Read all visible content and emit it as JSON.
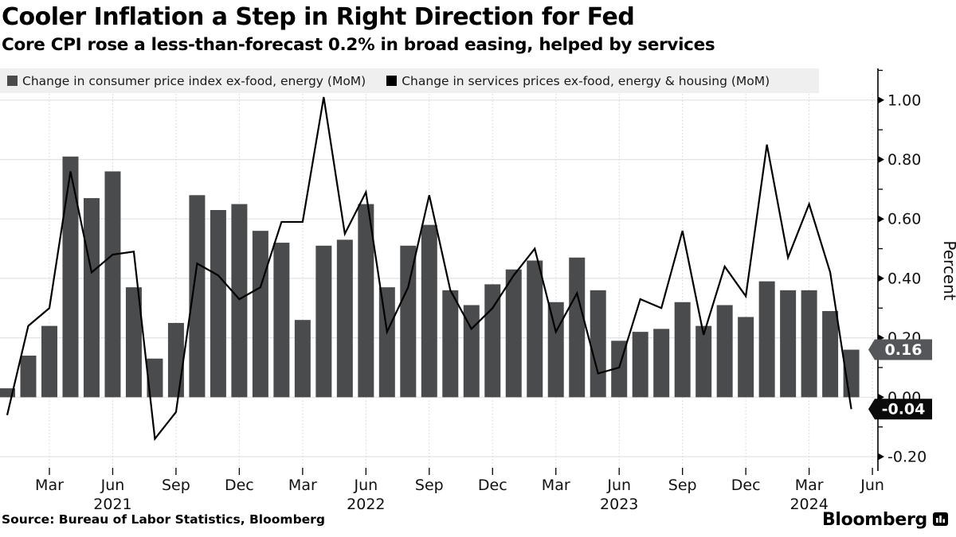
{
  "header": {
    "title": "Cooler Inflation a Step in Right Direction for Fed",
    "subtitle": "Core CPI rose a less-than-forecast 0.2% in broad easing, helped by services"
  },
  "legend": {
    "items": [
      {
        "label": "Change in consumer price index ex-food, energy (MoM)",
        "color": "#4a4b4d"
      },
      {
        "label": "Change in services prices ex-food, energy & housing (MoM)",
        "color": "#000000"
      }
    ]
  },
  "chart_data": {
    "type": "combo",
    "x": [
      "Jan 2021",
      "Feb 2021",
      "Mar 2021",
      "Apr 2021",
      "May 2021",
      "Jun 2021",
      "Jul 2021",
      "Aug 2021",
      "Sep 2021",
      "Oct 2021",
      "Nov 2021",
      "Dec 2021",
      "Jan 2022",
      "Feb 2022",
      "Mar 2022",
      "Apr 2022",
      "May 2022",
      "Jun 2022",
      "Jul 2022",
      "Aug 2022",
      "Sep 2022",
      "Oct 2022",
      "Nov 2022",
      "Dec 2022",
      "Jan 2023",
      "Feb 2023",
      "Mar 2023",
      "Apr 2023",
      "May 2023",
      "Jun 2023",
      "Jul 2023",
      "Aug 2023",
      "Sep 2023",
      "Oct 2023",
      "Nov 2023",
      "Dec 2023",
      "Jan 2024",
      "Feb 2024",
      "Mar 2024",
      "Apr 2024",
      "May 2024"
    ],
    "series": [
      {
        "name": "Change in consumer price index ex-food, energy (MoM)",
        "type": "bar",
        "color": "#4a4b4d",
        "values": [
          0.03,
          0.14,
          0.24,
          0.81,
          0.67,
          0.76,
          0.37,
          0.13,
          0.25,
          0.68,
          0.63,
          0.65,
          0.56,
          0.52,
          0.26,
          0.51,
          0.53,
          0.65,
          0.37,
          0.51,
          0.58,
          0.36,
          0.31,
          0.38,
          0.43,
          0.46,
          0.32,
          0.47,
          0.36,
          0.19,
          0.22,
          0.23,
          0.32,
          0.24,
          0.31,
          0.27,
          0.39,
          0.36,
          0.36,
          0.29,
          0.16
        ],
        "end_label": "0.16"
      },
      {
        "name": "Change in services prices ex-food, energy & housing (MoM)",
        "type": "line",
        "color": "#000000",
        "values": [
          -0.06,
          0.24,
          0.3,
          0.76,
          0.42,
          0.48,
          0.49,
          -0.14,
          -0.05,
          0.45,
          0.41,
          0.33,
          0.37,
          0.59,
          0.59,
          1.01,
          0.55,
          0.69,
          0.22,
          0.37,
          0.68,
          0.36,
          0.23,
          0.3,
          0.41,
          0.5,
          0.22,
          0.35,
          0.08,
          0.1,
          0.33,
          0.3,
          0.56,
          0.21,
          0.44,
          0.34,
          0.85,
          0.47,
          0.65,
          0.42,
          -0.04
        ],
        "end_label": "-0.04"
      }
    ],
    "ylabel": "Percent",
    "ylim": [
      -0.25,
      1.1
    ],
    "yticks": [
      {
        "v": 1.0,
        "label": "1.00"
      },
      {
        "v": 0.8,
        "label": "0.80"
      },
      {
        "v": 0.6,
        "label": "0.60"
      },
      {
        "v": 0.4,
        "label": "0.40"
      },
      {
        "v": 0.2,
        "label": "0.20"
      },
      {
        "v": 0.0,
        "label": "0.00"
      },
      {
        "v": -0.2,
        "label": "-0.20"
      }
    ],
    "yticks_minor": [
      1.1,
      0.9,
      0.7,
      0.5,
      0.3,
      0.1,
      -0.1
    ],
    "xticks": [
      {
        "label": "Mar",
        "i": 2
      },
      {
        "label": "Jun",
        "i": 5
      },
      {
        "label": "Sep",
        "i": 8
      },
      {
        "label": "Dec",
        "i": 11
      },
      {
        "label": "Mar",
        "i": 14
      },
      {
        "label": "Jun",
        "i": 17
      },
      {
        "label": "Sep",
        "i": 20
      },
      {
        "label": "Dec",
        "i": 23
      },
      {
        "label": "Mar",
        "i": 26
      },
      {
        "label": "Jun",
        "i": 29
      },
      {
        "label": "Sep",
        "i": 32
      },
      {
        "label": "Dec",
        "i": 35
      },
      {
        "label": "Mar",
        "i": 38
      },
      {
        "label": "Jun",
        "i": 41
      }
    ],
    "year_labels": [
      {
        "label": "2021",
        "i": 5
      },
      {
        "label": "2022",
        "i": 17
      },
      {
        "label": "2023",
        "i": 29
      },
      {
        "label": "2024",
        "i": 38
      }
    ],
    "value_tags": [
      {
        "label": "0.16",
        "value": 0.16,
        "bg": "#55565a",
        "text_color": "#ffffff"
      },
      {
        "label": "-0.04",
        "value": -0.04,
        "bg": "#0a0a0a",
        "text_color": "#ffffff"
      }
    ],
    "grid": {
      "horizontal": "solid",
      "vertical": "dotted-quarterly"
    },
    "legend_position": "top"
  },
  "footer": {
    "source": "Source: Bureau of Labor Statistics, Bloomberg",
    "logo_text": "Bloomberg"
  }
}
